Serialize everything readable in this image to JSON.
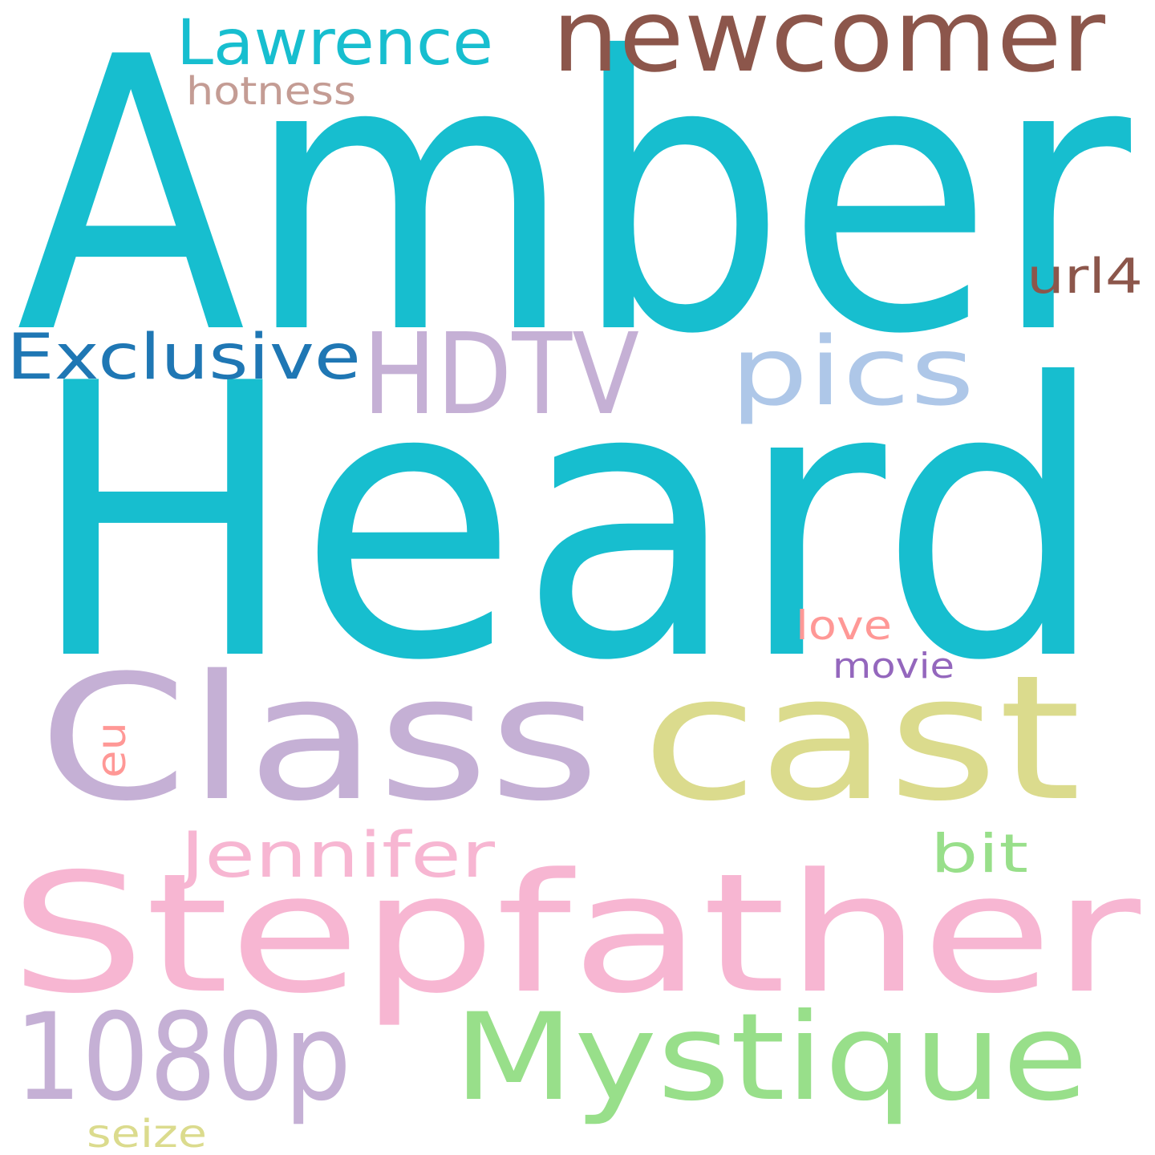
{
  "words": [
    {
      "text": "Amber",
      "color": "#17becf"
    },
    {
      "text": "Heard",
      "color": "#17becf"
    },
    {
      "text": "newcomer",
      "color": "#8c564b"
    },
    {
      "text": "Lawrence",
      "color": "#17becf"
    },
    {
      "text": "hotness",
      "color": "#c49c94"
    },
    {
      "text": "url4",
      "color": "#8c564b"
    },
    {
      "text": "Exclusive",
      "color": "#1f77b4"
    },
    {
      "text": "HDTV",
      "color": "#c5b0d5"
    },
    {
      "text": "pics",
      "color": "#aec7e8"
    },
    {
      "text": "love",
      "color": "#ff9896"
    },
    {
      "text": "movie",
      "color": "#9467bd"
    },
    {
      "text": "Class",
      "color": "#c5b0d5"
    },
    {
      "text": "cast",
      "color": "#dbdb8d"
    },
    {
      "text": "eu",
      "color": "#ff9896"
    },
    {
      "text": "Jennifer",
      "color": "#f7b6d2"
    },
    {
      "text": "bit",
      "color": "#98df8a"
    },
    {
      "text": "Stepfather",
      "color": "#f7b6d2"
    },
    {
      "text": "1080p",
      "color": "#c5b0d5"
    },
    {
      "text": "Mystique",
      "color": "#98df8a"
    },
    {
      "text": "seize",
      "color": "#dbdb8d"
    }
  ]
}
